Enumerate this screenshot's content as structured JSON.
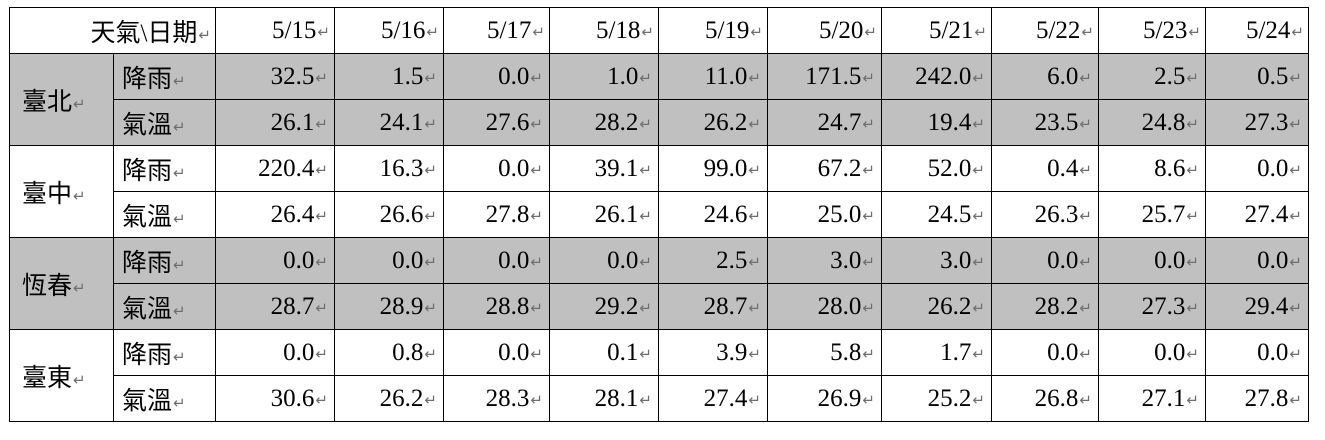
{
  "header": {
    "corner": "天氣\\日期",
    "dates": [
      "5/15",
      "5/16",
      "5/17",
      "5/18",
      "5/19",
      "5/20",
      "5/21",
      "5/22",
      "5/23",
      "5/24"
    ]
  },
  "marker": "↵",
  "metric_labels": {
    "rain": "降雨",
    "temp": "氣溫"
  },
  "cities": [
    {
      "name": "臺北",
      "rain": [
        "32.5",
        "1.5",
        "0.0",
        "1.0",
        "11.0",
        "171.5",
        "242.0",
        "6.0",
        "2.5",
        "0.5"
      ],
      "temp": [
        "26.1",
        "24.1",
        "27.6",
        "28.2",
        "26.2",
        "24.7",
        "19.4",
        "23.5",
        "24.8",
        "27.3"
      ]
    },
    {
      "name": "臺中",
      "rain": [
        "220.4",
        "16.3",
        "0.0",
        "39.1",
        "99.0",
        "67.2",
        "52.0",
        "0.4",
        "8.6",
        "0.0"
      ],
      "temp": [
        "26.4",
        "26.6",
        "27.8",
        "26.1",
        "24.6",
        "25.0",
        "24.5",
        "26.3",
        "25.7",
        "27.4"
      ]
    },
    {
      "name": "恆春",
      "rain": [
        "0.0",
        "0.0",
        "0.0",
        "0.0",
        "2.5",
        "3.0",
        "3.0",
        "0.0",
        "0.0",
        "0.0"
      ],
      "temp": [
        "28.7",
        "28.9",
        "28.8",
        "29.2",
        "28.7",
        "28.0",
        "26.2",
        "28.2",
        "27.3",
        "29.4"
      ]
    },
    {
      "name": "臺東",
      "rain": [
        "0.0",
        "0.8",
        "0.0",
        "0.1",
        "3.9",
        "5.8",
        "1.7",
        "0.0",
        "0.0",
        "0.0"
      ],
      "temp": [
        "30.6",
        "26.2",
        "28.3",
        "28.1",
        "27.4",
        "26.9",
        "25.2",
        "26.8",
        "27.1",
        "27.8"
      ]
    }
  ],
  "colors": {
    "shade": "#c0c0c0",
    "border": "#000000",
    "marker": "#6e6e6e"
  }
}
